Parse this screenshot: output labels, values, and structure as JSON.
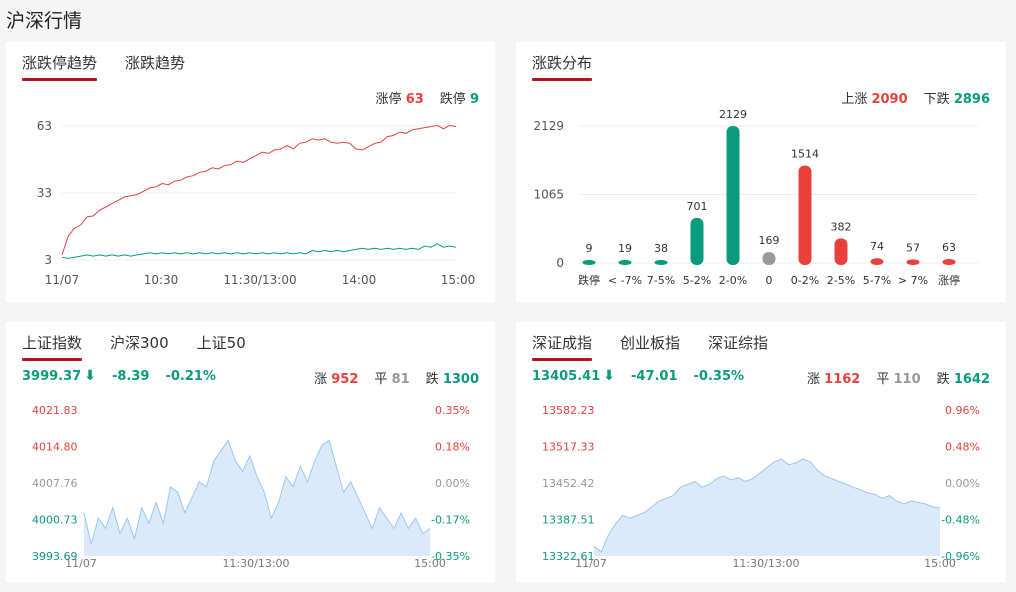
{
  "page": {
    "title": "沪深行情"
  },
  "limit_panel": {
    "tabs": [
      "涨跌停趋势",
      "涨跌趋势"
    ],
    "limit_up_label": "涨停",
    "limit_up_value": "63",
    "limit_down_label": "跌停",
    "limit_down_value": "9"
  },
  "dist_panel": {
    "tabs": [
      "涨跌分布"
    ],
    "up_label": "上涨",
    "up_value": "2090",
    "down_label": "下跌",
    "down_value": "2896"
  },
  "sh_panel": {
    "tabs": [
      "上证指数",
      "沪深300",
      "上证50"
    ],
    "price": "3999.37",
    "change": "-8.39",
    "change_pct": "-0.21%",
    "rise_label": "涨",
    "rise_value": "952",
    "flat_label": "平",
    "flat_value": "81",
    "fall_label": "跌",
    "fall_value": "1300"
  },
  "sz_panel": {
    "tabs": [
      "深证成指",
      "创业板指",
      "深证综指"
    ],
    "price": "13405.41",
    "change": "-47.01",
    "change_pct": "-0.35%",
    "rise_label": "涨",
    "rise_value": "1162",
    "flat_label": "平",
    "flat_value": "110",
    "fall_label": "跌",
    "fall_value": "1642"
  },
  "colors": {
    "up": "#e8413c",
    "down": "#0a9a7d",
    "flat": "#999999",
    "accent": "#b5121b",
    "area_fill": "#dbeafb",
    "area_line": "#9cc7f0"
  },
  "chart_data": [
    {
      "type": "line",
      "yticks": [
        "63",
        "33",
        "3"
      ],
      "ylim": [
        3,
        63
      ],
      "xticks": [
        "11/07",
        "10:30",
        "11:30/13:00",
        "14:00",
        "15:00"
      ],
      "series": [
        {
          "name": "涨停",
          "color": "#e8413c",
          "values": [
            5,
            14,
            17,
            19,
            22,
            23,
            25,
            27,
            28,
            30,
            31,
            32,
            32,
            34,
            35,
            36,
            37,
            37,
            38,
            39,
            40,
            41,
            42,
            43,
            44,
            44,
            45,
            46,
            47,
            47,
            48,
            50,
            51,
            51,
            52,
            53,
            54,
            53,
            55,
            56,
            57,
            57,
            57,
            56,
            55,
            56,
            55,
            53,
            52,
            54,
            55,
            56,
            58,
            59,
            60,
            60,
            61,
            62,
            62,
            63,
            63,
            62,
            63,
            63
          ]
        },
        {
          "name": "跌停",
          "color": "#0a9a7d",
          "values": [
            4,
            4,
            4,
            5,
            5,
            5,
            5,
            5,
            5,
            5,
            5,
            5,
            5,
            6,
            6,
            6,
            6,
            6,
            6,
            6,
            6,
            6,
            6,
            6,
            6,
            6,
            6,
            6,
            6,
            6,
            6,
            6,
            6,
            6,
            6,
            6,
            6,
            6,
            6,
            6,
            7,
            7,
            7,
            7,
            7,
            7,
            7,
            8,
            8,
            8,
            8,
            8,
            8,
            8,
            8,
            8,
            8,
            8,
            9,
            9,
            10,
            9,
            9,
            9
          ]
        }
      ]
    },
    {
      "type": "bar",
      "categories": [
        "跌停",
        "< -7%",
        "7-5%",
        "5-2%",
        "2-0%",
        "0",
        "0-2%",
        "2-5%",
        "5-7%",
        "> 7%",
        "涨停"
      ],
      "values": [
        9,
        19,
        38,
        701,
        2129,
        169,
        1514,
        382,
        74,
        57,
        63
      ],
      "bar_colors": [
        "#0a9a7d",
        "#0a9a7d",
        "#0a9a7d",
        "#0a9a7d",
        "#0a9a7d",
        "#999999",
        "#e8413c",
        "#e8413c",
        "#e8413c",
        "#e8413c",
        "#e8413c"
      ],
      "yticks": [
        "2129",
        "1065",
        "0"
      ],
      "ylim": [
        0,
        2129
      ]
    },
    {
      "type": "area",
      "name": "上证指数",
      "yticks_left": [
        "4021.83",
        "4014.80",
        "4007.76",
        "4000.73",
        "3993.69"
      ],
      "yticks_right": [
        "0.35%",
        "0.18%",
        "0.00%",
        "-0.17%",
        "-0.35%"
      ],
      "ylim": [
        3993.69,
        4021.83
      ],
      "xticks": [
        "11/07",
        "11:30/13:00",
        "15:00"
      ],
      "values": [
        4002,
        3996,
        4001,
        3999,
        4003,
        3998,
        4001,
        3997,
        4003,
        4000,
        4004,
        4000,
        4007,
        4006,
        4002,
        4005,
        4008,
        4007,
        4012,
        4014,
        4016,
        4012,
        4010,
        4013,
        4009,
        4006,
        4001,
        4004,
        4009,
        4007,
        4011,
        4008,
        4012,
        4015,
        4016,
        4011,
        4006,
        4008,
        4005,
        4002,
        3999,
        4003,
        4001,
        3999,
        4002,
        3999,
        4001,
        3998,
        3999
      ]
    },
    {
      "type": "area",
      "name": "深证成指",
      "yticks_left": [
        "13582.23",
        "13517.33",
        "13452.42",
        "13387.51",
        "13322.61"
      ],
      "yticks_right": [
        "0.96%",
        "0.48%",
        "0.00%",
        "-0.48%",
        "-0.96%"
      ],
      "ylim": [
        13322.61,
        13582.23
      ],
      "xticks": [
        "11/07",
        "11:30/13:00",
        "15:00"
      ],
      "values": [
        13340,
        13330,
        13360,
        13380,
        13395,
        13390,
        13395,
        13400,
        13410,
        13420,
        13425,
        13430,
        13445,
        13450,
        13455,
        13445,
        13450,
        13460,
        13465,
        13458,
        13462,
        13455,
        13460,
        13470,
        13480,
        13490,
        13495,
        13485,
        13488,
        13495,
        13490,
        13475,
        13465,
        13460,
        13455,
        13450,
        13445,
        13440,
        13435,
        13432,
        13425,
        13430,
        13420,
        13415,
        13420,
        13418,
        13415,
        13410,
        13408
      ]
    }
  ]
}
